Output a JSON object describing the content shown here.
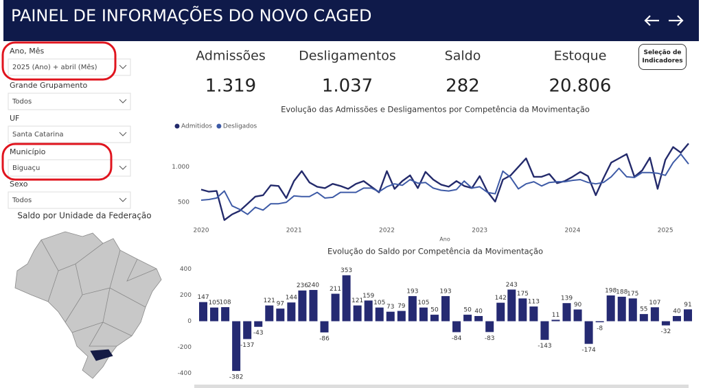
{
  "header": {
    "title": "PAINEL DE INFORMAÇÕES DO NOVO CAGED"
  },
  "filters": [
    {
      "label": "Ano, Mês",
      "value": "2025 (Ano) + abril (Mês)"
    },
    {
      "label": "Grande Grupamento",
      "value": "Todos"
    },
    {
      "label": "UF",
      "value": "Santa Catarina"
    },
    {
      "label": "Município",
      "value": "Biguaçu"
    },
    {
      "label": "Sexo",
      "value": "Todos"
    }
  ],
  "kpis": [
    {
      "label": "Admissões",
      "value": "1.319"
    },
    {
      "label": "Desligamentos",
      "value": "1.037"
    },
    {
      "label": "Saldo",
      "value": "282"
    },
    {
      "label": "Estoque",
      "value": "20.806"
    }
  ],
  "button": "Seleção de Indicadores",
  "map": {
    "title": "Saldo por Unidade da Federação"
  },
  "chart_data": [
    {
      "type": "line",
      "title": "Evolução das Admissões e Desligamentos por Competência da Movimentação",
      "x_label": "Ano",
      "categories": [
        "2020",
        null,
        null,
        null,
        null,
        null,
        null,
        null,
        null,
        null,
        null,
        null,
        "2021",
        null,
        null,
        null,
        null,
        null,
        null,
        null,
        null,
        null,
        null,
        null,
        "2022",
        null,
        null,
        null,
        null,
        null,
        null,
        null,
        null,
        null,
        null,
        null,
        "2023",
        null,
        null,
        null,
        null,
        null,
        null,
        null,
        null,
        null,
        null,
        null,
        "2024",
        null,
        null,
        null,
        null,
        null,
        null,
        null,
        null,
        null,
        null,
        null,
        "2025",
        null,
        null,
        null
      ],
      "series": [
        {
          "name": "Admitidos",
          "color": "#232a6b",
          "values": [
            680,
            650,
            660,
            250,
            330,
            380,
            480,
            580,
            600,
            740,
            730,
            560,
            800,
            940,
            780,
            720,
            700,
            760,
            730,
            690,
            760,
            800,
            720,
            640,
            940,
            690,
            800,
            880,
            700,
            930,
            820,
            750,
            720,
            800,
            730,
            700,
            870,
            650,
            510,
            820,
            880,
            1000,
            1120,
            860,
            860,
            900,
            770,
            800,
            860,
            930,
            870,
            600,
            840,
            1060,
            1120,
            1180,
            860,
            950,
            1130,
            690,
            1100,
            1280,
            1200,
            1330
          ]
        },
        {
          "name": "Desligados",
          "color": "#3d5aa6",
          "values": [
            530,
            540,
            560,
            660,
            450,
            400,
            330,
            430,
            390,
            480,
            480,
            500,
            590,
            580,
            580,
            640,
            560,
            570,
            640,
            640,
            640,
            700,
            700,
            650,
            720,
            760,
            740,
            820,
            770,
            780,
            700,
            670,
            660,
            680,
            800,
            700,
            720,
            640,
            620,
            940,
            850,
            690,
            760,
            790,
            730,
            780,
            790,
            790,
            810,
            820,
            780,
            760,
            780,
            860,
            980,
            860,
            850,
            920,
            920,
            910,
            880,
            1060,
            1180,
            1040
          ]
        }
      ],
      "ylim": [
        240,
        1420
      ],
      "yticks": [
        500,
        {
          "value": 1000,
          "label": "1.000"
        }
      ]
    },
    {
      "type": "bar",
      "title": "Evolução do Saldo por Competência da Movimentação",
      "color": "#252a72",
      "values": [
        147,
        105,
        108,
        -382,
        -137,
        -43,
        121,
        97,
        144,
        236,
        240,
        -86,
        211,
        353,
        121,
        159,
        105,
        73,
        79,
        193,
        105,
        50,
        193,
        -84,
        50,
        40,
        -83,
        142,
        243,
        175,
        113,
        -143,
        11,
        139,
        90,
        -174,
        -8,
        198,
        188,
        175,
        55,
        107,
        -32,
        40,
        91
      ],
      "ylim": [
        -455,
        440
      ],
      "yticks": [
        -400,
        -200,
        0,
        200,
        400
      ]
    }
  ]
}
